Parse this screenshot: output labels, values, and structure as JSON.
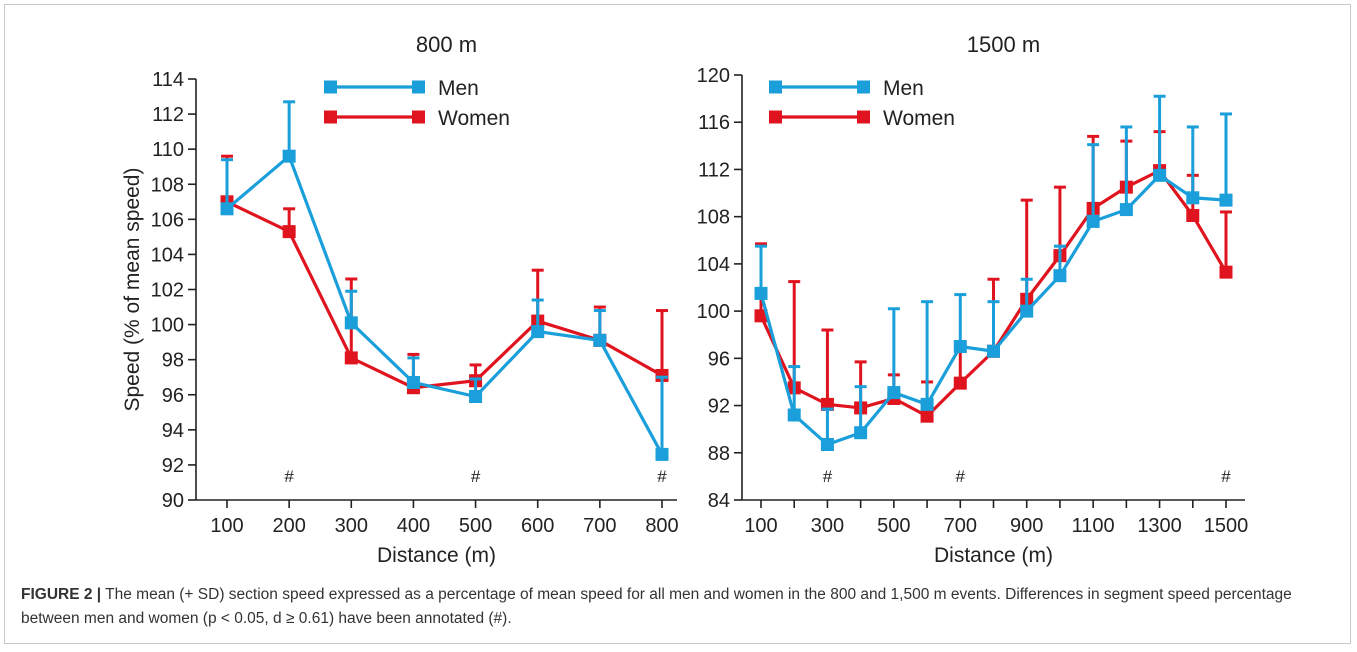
{
  "chart_data": [
    {
      "type": "line",
      "title": "800 m",
      "xlabel": "Distance (m)",
      "ylabel": "Speed (% of mean speed)",
      "x": [
        100,
        200,
        300,
        400,
        500,
        600,
        700,
        800
      ],
      "xlim": [
        100,
        800
      ],
      "ylim": [
        90,
        114
      ],
      "yticks": [
        90,
        92,
        94,
        96,
        98,
        100,
        102,
        104,
        106,
        108,
        110,
        112,
        114
      ],
      "xticks": [
        100,
        200,
        300,
        400,
        500,
        600,
        700,
        800
      ],
      "legend": "top-left",
      "grid": false,
      "series": [
        {
          "name": "Men",
          "color": "#1a9fdb",
          "values": [
            106.6,
            109.6,
            100.1,
            96.7,
            95.9,
            99.6,
            99.1,
            92.6
          ],
          "sd_upper": [
            109.4,
            112.7,
            101.9,
            98.1,
            96.9,
            101.4,
            100.8,
            97.0
          ]
        },
        {
          "name": "Women",
          "color": "#e0141e",
          "values": [
            107.0,
            105.3,
            98.1,
            96.4,
            96.8,
            100.2,
            99.1,
            97.1
          ],
          "sd_upper": [
            109.6,
            106.6,
            102.6,
            98.3,
            97.7,
            103.1,
            101.0,
            100.8
          ]
        }
      ],
      "annotations": [
        {
          "x": 200,
          "text": "#"
        },
        {
          "x": 500,
          "text": "#"
        },
        {
          "x": 800,
          "text": "#"
        }
      ]
    },
    {
      "type": "line",
      "title": "1500 m",
      "xlabel": "Distance (m)",
      "ylabel": "",
      "x": [
        100,
        200,
        300,
        400,
        500,
        600,
        700,
        800,
        900,
        1000,
        1100,
        1200,
        1300,
        1400,
        1500
      ],
      "xlim": [
        100,
        1500
      ],
      "ylim": [
        84,
        120
      ],
      "yticks": [
        84,
        88,
        92,
        96,
        100,
        104,
        108,
        112,
        116,
        120
      ],
      "xticks": [
        100,
        300,
        500,
        700,
        900,
        1100,
        1300,
        1500
      ],
      "legend": "top-left",
      "grid": false,
      "series": [
        {
          "name": "Men",
          "color": "#1a9fdb",
          "values": [
            101.5,
            91.2,
            88.7,
            89.7,
            93.1,
            92.1,
            97.0,
            96.6,
            100.0,
            103.0,
            107.6,
            108.6,
            111.5,
            109.6,
            109.4
          ],
          "sd_upper": [
            105.5,
            95.3,
            91.7,
            93.6,
            100.2,
            100.8,
            101.4,
            100.8,
            102.7,
            105.5,
            114.1,
            115.6,
            118.2,
            115.6,
            116.7
          ]
        },
        {
          "name": "Women",
          "color": "#e0141e",
          "values": [
            99.6,
            93.5,
            92.1,
            91.8,
            92.6,
            91.1,
            93.9,
            96.6,
            101.0,
            104.7,
            108.7,
            110.5,
            111.9,
            108.1,
            103.3
          ],
          "sd_upper": [
            105.7,
            102.5,
            98.4,
            95.7,
            94.6,
            94.0,
            97.1,
            102.7,
            109.4,
            110.5,
            114.8,
            114.4,
            115.2,
            111.5,
            108.4
          ]
        }
      ],
      "annotations": [
        {
          "x": 300,
          "text": "#"
        },
        {
          "x": 700,
          "text": "#"
        },
        {
          "x": 1500,
          "text": "#"
        }
      ]
    }
  ],
  "caption": {
    "label": "FIGURE 2 |",
    "text": "The mean (+ SD) section speed expressed as a percentage of mean speed for all men and women in the 800 and 1,500 m events. Differences in segment speed percentage between men and women (p < 0.05, d ≥ 0.61) have been annotated (#)."
  }
}
